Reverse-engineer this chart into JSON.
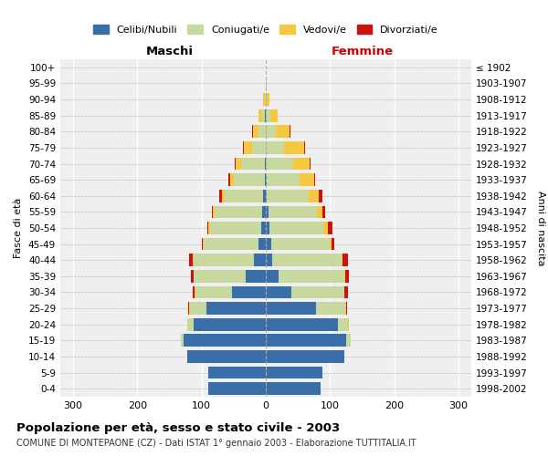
{
  "age_groups": [
    "100+",
    "95-99",
    "90-94",
    "85-89",
    "80-84",
    "75-79",
    "70-74",
    "65-69",
    "60-64",
    "55-59",
    "50-54",
    "45-49",
    "40-44",
    "35-39",
    "30-34",
    "25-29",
    "20-24",
    "15-19",
    "10-14",
    "5-9",
    "0-4"
  ],
  "birth_years": [
    "≤ 1902",
    "1903-1907",
    "1908-1912",
    "1913-1917",
    "1918-1922",
    "1923-1927",
    "1928-1932",
    "1933-1937",
    "1938-1942",
    "1943-1947",
    "1948-1952",
    "1953-1957",
    "1958-1962",
    "1963-1967",
    "1968-1972",
    "1973-1977",
    "1978-1982",
    "1983-1987",
    "1988-1992",
    "1993-1997",
    "1998-2002"
  ],
  "males": {
    "celibi": [
      0,
      0,
      0,
      1,
      0,
      0,
      1,
      2,
      4,
      5,
      7,
      12,
      18,
      32,
      52,
      92,
      112,
      128,
      122,
      90,
      90
    ],
    "coniugati": [
      0,
      0,
      2,
      5,
      12,
      22,
      38,
      48,
      60,
      75,
      80,
      85,
      95,
      80,
      58,
      26,
      10,
      4,
      0,
      0,
      0
    ],
    "vedovi": [
      0,
      0,
      2,
      5,
      8,
      12,
      8,
      6,
      4,
      2,
      2,
      1,
      1,
      1,
      1,
      1,
      0,
      0,
      0,
      0,
      0
    ],
    "divorziati": [
      0,
      0,
      0,
      0,
      1,
      1,
      1,
      2,
      5,
      2,
      2,
      2,
      5,
      4,
      3,
      2,
      1,
      0,
      0,
      0,
      0
    ]
  },
  "females": {
    "nubili": [
      0,
      0,
      0,
      0,
      0,
      0,
      0,
      2,
      2,
      4,
      5,
      8,
      10,
      20,
      40,
      78,
      112,
      125,
      122,
      88,
      86
    ],
    "coniugate": [
      0,
      0,
      2,
      7,
      15,
      28,
      42,
      50,
      65,
      75,
      85,
      92,
      108,
      102,
      82,
      46,
      16,
      7,
      0,
      0,
      0
    ],
    "vedove": [
      0,
      1,
      4,
      12,
      22,
      32,
      26,
      24,
      16,
      9,
      6,
      3,
      2,
      2,
      1,
      1,
      1,
      0,
      0,
      0,
      0
    ],
    "divorziate": [
      0,
      0,
      0,
      0,
      1,
      1,
      1,
      1,
      5,
      5,
      8,
      4,
      8,
      5,
      5,
      2,
      1,
      0,
      0,
      0,
      0
    ]
  },
  "colors": {
    "celibi_nubili": "#3a6ea8",
    "coniugati": "#c8d9a0",
    "vedovi": "#f5c842",
    "divorziati": "#cc1111"
  },
  "title": "Popolazione per età, sesso e stato civile - 2003",
  "subtitle": "COMUNE DI MONTEPAONE (CZ) - Dati ISTAT 1° gennaio 2003 - Elaborazione TUTTITALIA.IT",
  "xlabel_maschi": "Maschi",
  "xlabel_femmine": "Femmine",
  "ylabel_left": "Fasce di età",
  "ylabel_right": "Anni di nascita",
  "xlim": 320,
  "legend_labels": [
    "Celibi/Nubili",
    "Coniugati/e",
    "Vedovi/e",
    "Divorziati/e"
  ]
}
